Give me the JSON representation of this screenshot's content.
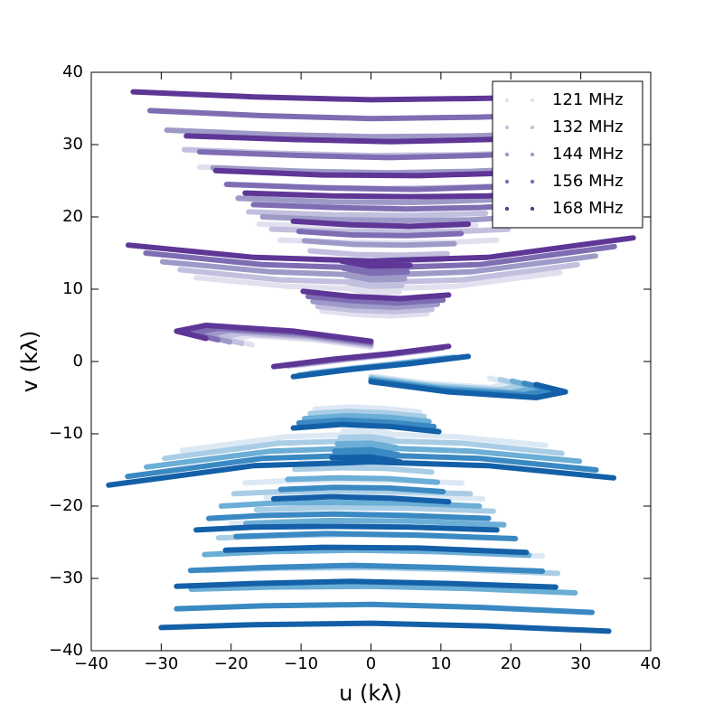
{
  "chart_data": {
    "type": "line",
    "mirror": true,
    "xlabel": "u (kλ)",
    "ylabel": "v (kλ)",
    "xlim": [
      -40,
      40
    ],
    "ylim": [
      -40,
      40
    ],
    "xticks": [
      {
        "value": -40,
        "label": "−40"
      },
      {
        "value": -30,
        "label": "−30"
      },
      {
        "value": -20,
        "label": "−20"
      },
      {
        "value": -10,
        "label": "−10"
      },
      0,
      10,
      20,
      30,
      40
    ],
    "yticks": [
      {
        "value": -40,
        "label": "−40"
      },
      {
        "value": -30,
        "label": "−30"
      },
      {
        "value": -20,
        "label": "−20"
      },
      {
        "value": -10,
        "label": "−10"
      },
      0,
      10,
      20,
      30,
      40
    ],
    "legend": "upper right",
    "series": [
      {
        "name": "121 MHz",
        "color": "#e2e0ef",
        "mirror_color": "#dce9f5",
        "x": [
          -24.5,
          -12,
          0,
          12,
          21.6,
          null,
          -19,
          -8,
          2,
          12,
          20,
          null,
          -13,
          -4,
          4,
          12,
          18,
          null,
          -25,
          -12,
          0,
          12,
          27,
          null,
          -8,
          -2,
          4,
          10,
          null,
          -7,
          -2,
          3,
          8,
          null,
          -17,
          -20,
          -17,
          -8,
          0,
          null,
          -10,
          -4,
          2,
          8,
          null,
          -3,
          0,
          4,
          null,
          -16,
          -5,
          5,
          15
        ],
        "y": [
          26.9,
          26.4,
          26.1,
          26.2,
          26.5,
          null,
          22.5,
          22.1,
          21.9,
          22.1,
          22.4,
          null,
          16.8,
          16.5,
          16.4,
          16.5,
          16.8,
          null,
          11.6,
          10.4,
          10,
          10.4,
          12.3,
          null,
          14,
          13.6,
          13.5,
          13.7,
          null,
          7,
          6.5,
          6.3,
          6.6,
          null,
          2.3,
          3,
          3.6,
          3,
          2,
          null,
          -0.5,
          0.2,
          0.8,
          1.5,
          null,
          10,
          9.5,
          9.6,
          null,
          19,
          18.6,
          18.5,
          18.8
        ]
      },
      {
        "name": "132 MHz",
        "color": "#c2c0de",
        "mirror_color": "#aacde6",
        "x": [
          -26.7,
          -13.1,
          0,
          13.1,
          23.6,
          null,
          -20.7,
          -8.7,
          2.2,
          13.1,
          21.8,
          null,
          -14.2,
          -4.4,
          4.4,
          13.1,
          19.6,
          null,
          -27.3,
          -13.1,
          0,
          13.1,
          29.5,
          null,
          -8.7,
          -2.2,
          4.4,
          10.9,
          null,
          -7.6,
          -2.2,
          3.3,
          8.7,
          null,
          -18.5,
          -21.8,
          -18.5,
          -8.7,
          0,
          null,
          -10.9,
          -4.4,
          2.2,
          8.7,
          null,
          -3.3,
          0,
          4.4,
          null,
          -17.5,
          -5.5,
          5.5,
          16.4
        ],
        "y": [
          29.3,
          28.8,
          28.5,
          28.6,
          28.9,
          null,
          24.5,
          24.1,
          23.9,
          24.1,
          24.4,
          null,
          18.3,
          18,
          17.9,
          18,
          18.3,
          null,
          12.7,
          11.3,
          10.9,
          11.3,
          13.4,
          null,
          15.3,
          14.8,
          14.7,
          14.9,
          null,
          7.6,
          7.1,
          6.9,
          7.2,
          null,
          2.5,
          3.3,
          3.9,
          3.3,
          2.2,
          null,
          -0.5,
          0.2,
          0.9,
          1.6,
          null,
          10.9,
          10.4,
          10.5,
          null,
          20.7,
          20.3,
          20.2,
          20.5
        ]
      },
      {
        "name": "144 MHz",
        "color": "#9e9ac8",
        "mirror_color": "#6baed6",
        "x": [
          -29.2,
          -14.3,
          0,
          14.3,
          25.7,
          null,
          -22.6,
          -9.5,
          2.4,
          14.3,
          23.8,
          null,
          -15.5,
          -4.8,
          4.8,
          14.3,
          21.4,
          null,
          -29.8,
          -14.3,
          0,
          14.3,
          32.1,
          null,
          -9.5,
          -2.4,
          4.8,
          11.9,
          null,
          -8.3,
          -2.4,
          3.6,
          9.5,
          null,
          -20.2,
          -23.8,
          -20.2,
          -9.5,
          0,
          null,
          -11.9,
          -4.8,
          2.4,
          9.5,
          null,
          -3.6,
          0,
          4.8,
          null,
          -19,
          -6,
          6,
          17.9
        ],
        "y": [
          32,
          31.4,
          31.1,
          31.2,
          31.5,
          null,
          26.8,
          26.3,
          26.1,
          26.3,
          26.7,
          null,
          20,
          19.6,
          19.5,
          19.6,
          20,
          null,
          13.8,
          12.4,
          11.9,
          12.4,
          14.6,
          null,
          16.7,
          16.2,
          16.1,
          16.3,
          null,
          8.3,
          7.7,
          7.5,
          7.9,
          null,
          2.7,
          3.6,
          4.3,
          3.6,
          2.4,
          null,
          -0.6,
          0.2,
          1,
          1.8,
          null,
          11.9,
          11.3,
          11.4,
          null,
          22.6,
          22.1,
          22,
          22.4
        ]
      },
      {
        "name": "156 MHz",
        "color": "#7e6db3",
        "mirror_color": "#3a89c2",
        "x": [
          -31.6,
          -15.5,
          0,
          15.5,
          27.8,
          null,
          -24.5,
          -10.3,
          2.6,
          15.5,
          25.8,
          null,
          -16.8,
          -5.2,
          5.2,
          15.5,
          23.2,
          null,
          -32.2,
          -15.5,
          0,
          15.5,
          34.8,
          null,
          -10.3,
          -2.6,
          5.2,
          12.9,
          null,
          -9,
          -2.6,
          3.9,
          10.3,
          null,
          -21.9,
          -25.8,
          -21.9,
          -10.3,
          0,
          null,
          -12.9,
          -5.2,
          2.6,
          10.3,
          null,
          -3.9,
          0,
          5.2,
          null,
          -20.6,
          -6.4,
          6.4,
          19.3
        ],
        "y": [
          34.7,
          34,
          33.6,
          33.8,
          34.2,
          null,
          29,
          28.5,
          28.2,
          28.5,
          28.9,
          null,
          21.7,
          21.3,
          21.1,
          21.3,
          21.7,
          null,
          15,
          13.4,
          12.9,
          13.4,
          15.9,
          null,
          18,
          17.5,
          17.4,
          17.7,
          null,
          9,
          8.4,
          8.1,
          8.5,
          null,
          3,
          3.9,
          4.6,
          3.9,
          2.6,
          null,
          -0.6,
          0.3,
          1,
          1.9,
          null,
          12.9,
          12.2,
          12.4,
          null,
          24.5,
          24,
          23.8,
          24.2
        ]
      },
      {
        "name": "168 MHz",
        "color": "#5e3696",
        "mirror_color": "#1460a8",
        "x": [
          -34,
          -16.7,
          0,
          16.7,
          30,
          null,
          -26.4,
          -11.1,
          2.8,
          16.7,
          27.8,
          null,
          -18,
          -5.6,
          5.6,
          16.7,
          25,
          null,
          -34.7,
          -16.7,
          0,
          16.7,
          37.5,
          null,
          -11.1,
          -2.8,
          5.6,
          13.9,
          null,
          -9.7,
          -2.8,
          4.2,
          11.1,
          null,
          -23.6,
          -27.8,
          -23.6,
          -11.1,
          0,
          null,
          -13.9,
          -5.6,
          2.8,
          11.1,
          null,
          -4.2,
          0,
          5.6,
          null,
          -22.2,
          -6.9,
          6.9,
          20.8
        ],
        "y": [
          37.3,
          36.6,
          36.2,
          36.4,
          36.8,
          null,
          31.2,
          30.7,
          30.4,
          30.7,
          31.1,
          null,
          23.3,
          22.9,
          22.8,
          22.9,
          23.3,
          null,
          16.1,
          14.4,
          13.9,
          14.4,
          17.1,
          null,
          19.4,
          18.9,
          18.7,
          19,
          null,
          9.7,
          9,
          8.7,
          9.2,
          null,
          3.2,
          4.2,
          5,
          4.2,
          2.8,
          null,
          -0.7,
          0.3,
          1.1,
          2.1,
          null,
          13.9,
          13.2,
          13.3,
          null,
          26.4,
          25.8,
          25.7,
          26.1
        ]
      }
    ]
  }
}
